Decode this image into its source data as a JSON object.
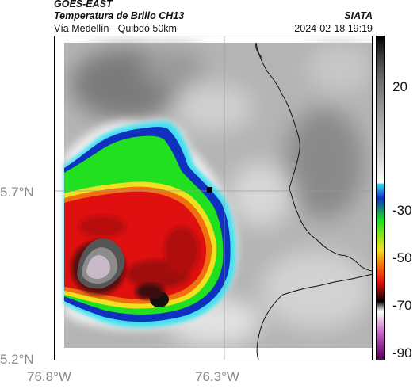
{
  "header": {
    "satellite": "GOES-EAST",
    "product": "Temperatura de Brillo CH13",
    "region": "Vía Medellín - Quibdó 50km",
    "source": "SIATA",
    "timestamp": "2024-02-18 19:19"
  },
  "axes": {
    "y_ticks": [
      {
        "label": "5.7°N",
        "value": 5.7
      },
      {
        "label": "5.2°N",
        "value": 5.2
      }
    ],
    "x_ticks": [
      {
        "label": "76.8°W",
        "value": -76.8
      },
      {
        "label": "76.3°W",
        "value": -76.3
      }
    ]
  },
  "colorbar": {
    "ticks": [
      {
        "label": "20",
        "value": 20
      },
      {
        "label": "-30",
        "value": -30
      },
      {
        "label": "-50",
        "value": -50
      },
      {
        "label": "-70",
        "value": -70
      },
      {
        "label": "-90",
        "value": -90
      }
    ],
    "range": [
      -95,
      35
    ]
  },
  "colors": {
    "background_gray": "#b8b8b8",
    "deep_convection_red": "#e01010",
    "cold_top_dark": "#3a0a0a",
    "anvil_green": "#20e020",
    "cloud_edge_blue": "#1040d0"
  }
}
